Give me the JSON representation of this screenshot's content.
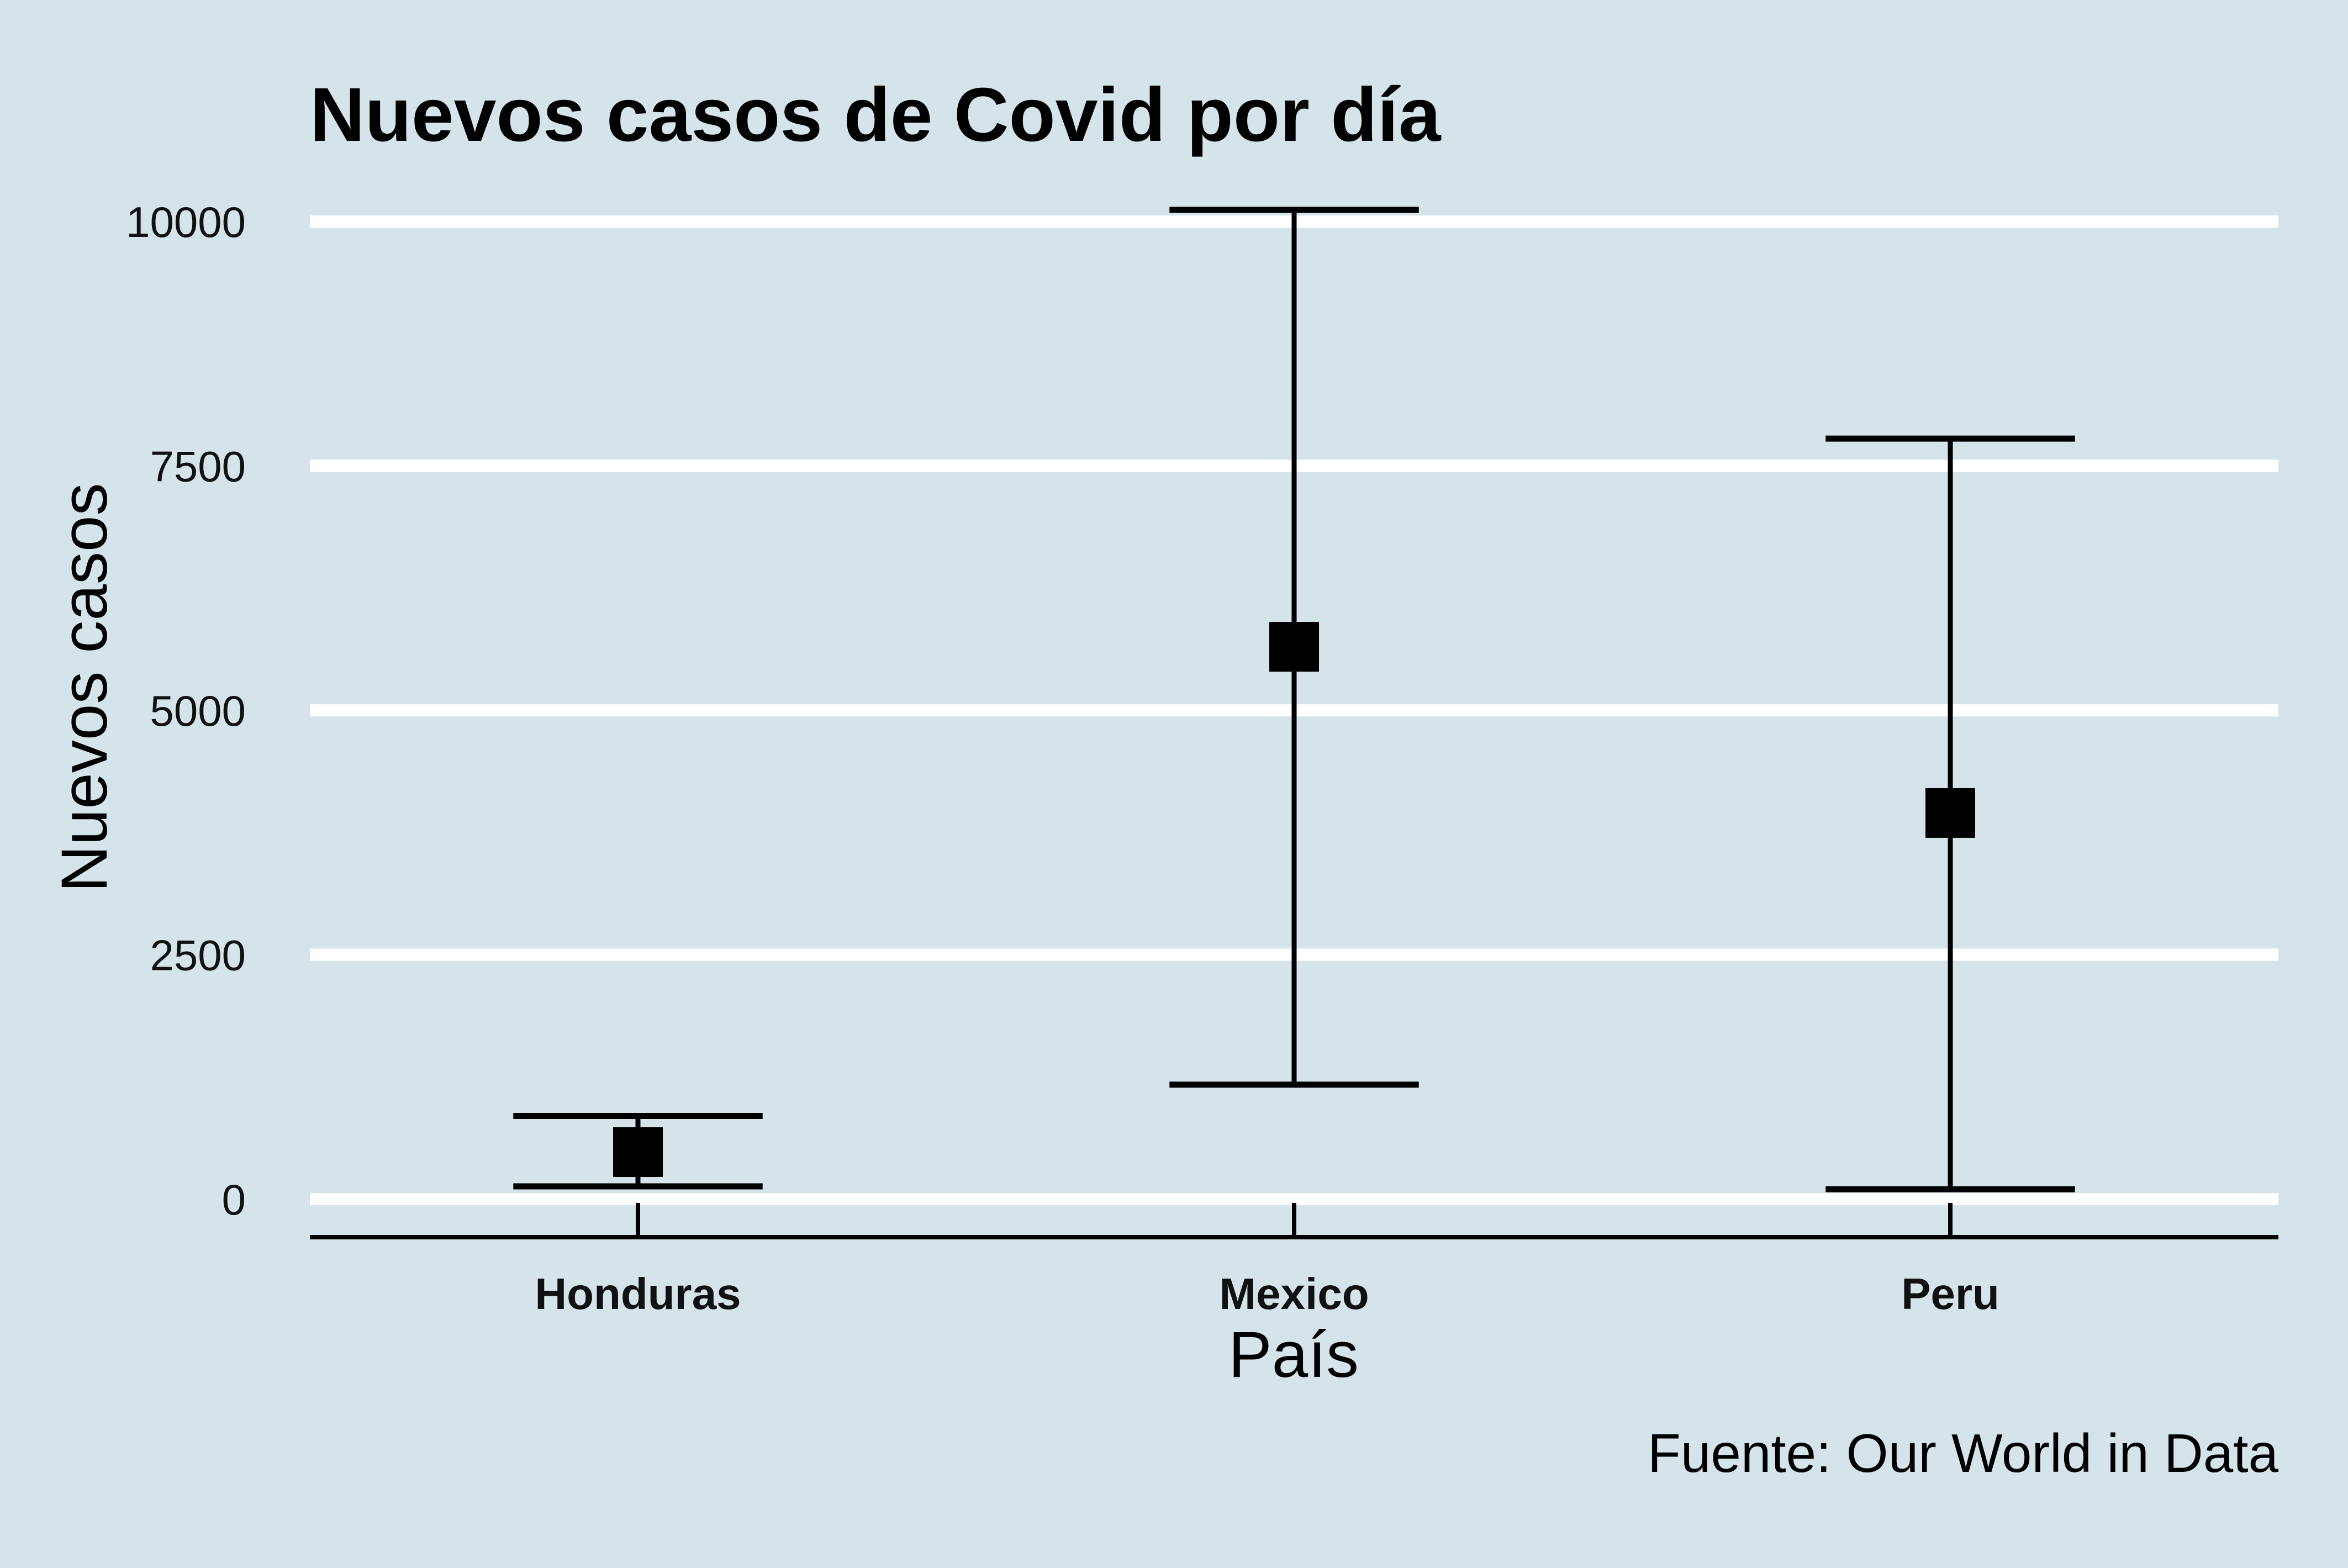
{
  "background_color": "#d5e4eb",
  "gridline_color": "#ffffff",
  "mark_color": "#000000",
  "chart_data": {
    "type": "errorbar",
    "title": "Nuevos casos de Covid por día",
    "xlabel": "País",
    "ylabel": "Nuevos casos",
    "caption": "Fuente: Our World in Data",
    "categories": [
      "Honduras",
      "Mexico",
      "Peru"
    ],
    "points": [
      {
        "category": "Honduras",
        "value": 480,
        "lower": 130,
        "upper": 850
      },
      {
        "category": "Mexico",
        "value": 5650,
        "lower": 1170,
        "upper": 10120
      },
      {
        "category": "Peru",
        "value": 3950,
        "lower": 100,
        "upper": 7780
      }
    ],
    "yticks": [
      0,
      2500,
      5000,
      7500,
      10000
    ],
    "ylim": [
      -390,
      10120
    ],
    "grid": "horizontal-major",
    "legend": "none",
    "point_shape": "square"
  }
}
